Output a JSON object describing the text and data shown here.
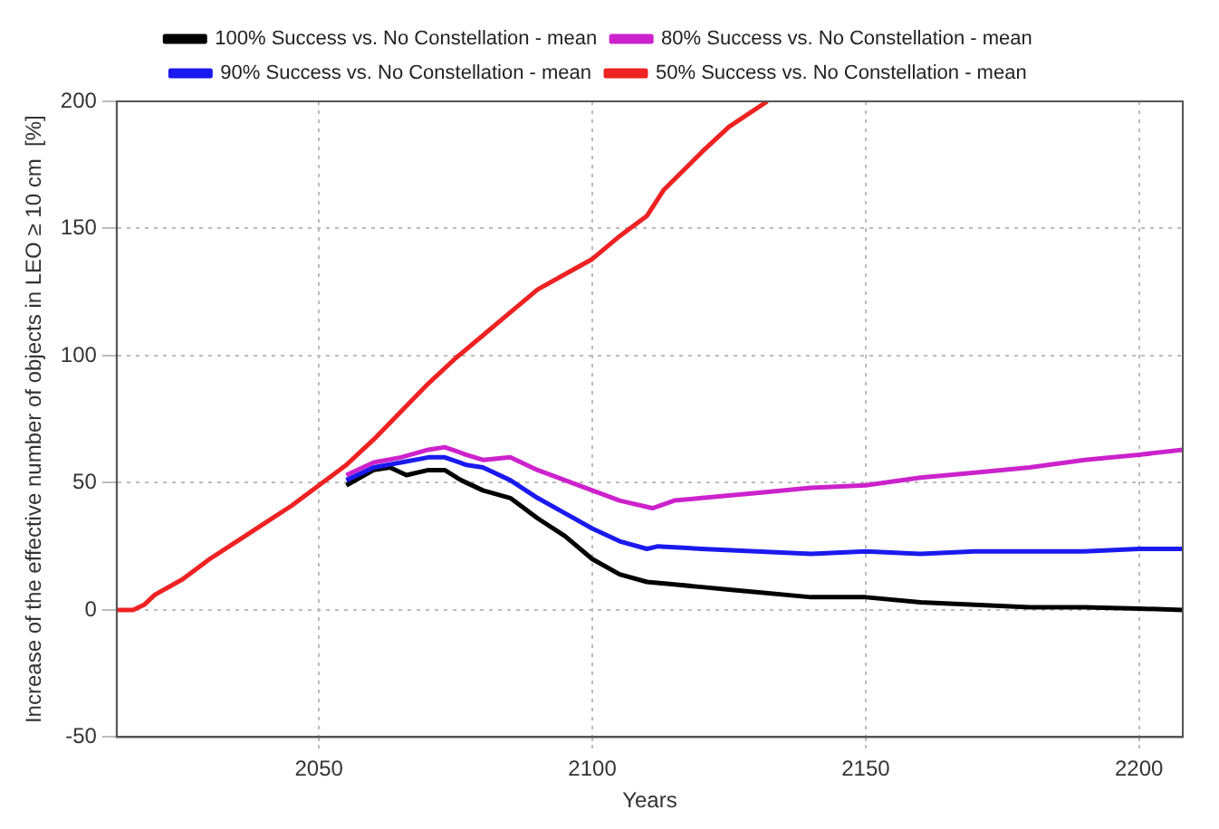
{
  "chart_data": {
    "type": "line",
    "xlabel": "Years",
    "ylabel": "Increase of the effective number of objects in LEO ≥ 10 cm  [%]",
    "xlim": [
      2013,
      2208
    ],
    "xticks": [
      2050,
      2100,
      2150,
      2200
    ],
    "ylim": [
      -50,
      200
    ],
    "yticks": [
      -50,
      0,
      50,
      100,
      150,
      200
    ],
    "grid": true,
    "legend": "top",
    "marker": "none",
    "line_style": "solid",
    "series": [
      {
        "name": "100% Success vs. No Constellation - mean",
        "color": "#000000",
        "x": [
          2055,
          2060,
          2063,
          2066,
          2070,
          2073,
          2076,
          2080,
          2085,
          2090,
          2095,
          2100,
          2105,
          2110,
          2115,
          2120,
          2125,
          2130,
          2140,
          2150,
          2160,
          2170,
          2180,
          2190,
          2200,
          2208
        ],
        "values": [
          49,
          55,
          56,
          53,
          55,
          55,
          51,
          47,
          44,
          36,
          29,
          20,
          14,
          11,
          10,
          9,
          8,
          7,
          5,
          5,
          3,
          2,
          1,
          1,
          0.5,
          0
        ]
      },
      {
        "name": "80% Success vs. No Constellation - mean",
        "color": "#cc22cc",
        "x": [
          2055,
          2060,
          2065,
          2070,
          2073,
          2077,
          2080,
          2085,
          2090,
          2095,
          2100,
          2105,
          2111,
          2115,
          2120,
          2130,
          2140,
          2150,
          2160,
          2170,
          2180,
          2190,
          2200,
          2208
        ],
        "values": [
          53,
          58,
          60,
          63,
          64,
          61,
          59,
          60,
          55,
          51,
          47,
          43,
          40,
          43,
          44,
          46,
          48,
          49,
          52,
          54,
          56,
          59,
          61,
          63
        ]
      },
      {
        "name": "90% Success vs. No Constellation - mean",
        "color": "#1a1aee",
        "x": [
          2055,
          2060,
          2065,
          2070,
          2073,
          2077,
          2080,
          2085,
          2090,
          2095,
          2100,
          2105,
          2110,
          2112,
          2120,
          2130,
          2140,
          2150,
          2160,
          2170,
          2180,
          2190,
          2200,
          2208
        ],
        "values": [
          51,
          56,
          58,
          60,
          60,
          57,
          56,
          51,
          44,
          38,
          32,
          27,
          24,
          25,
          24,
          23,
          22,
          23,
          22,
          23,
          23,
          23,
          24,
          24
        ]
      },
      {
        "name": "50% Success vs. No Constellation - mean",
        "color": "#ee2222",
        "x": [
          2013,
          2016,
          2018,
          2020,
          2025,
          2030,
          2035,
          2040,
          2045,
          2050,
          2055,
          2060,
          2065,
          2070,
          2075,
          2080,
          2085,
          2090,
          2095,
          2100,
          2105,
          2110,
          2113,
          2120,
          2125,
          2132
        ],
        "values": [
          0,
          0,
          2,
          6,
          12,
          20,
          27,
          34,
          41,
          49,
          57,
          67,
          78,
          89,
          99,
          108,
          117,
          126,
          132,
          138,
          147,
          155,
          165,
          180,
          190,
          200
        ]
      }
    ]
  }
}
